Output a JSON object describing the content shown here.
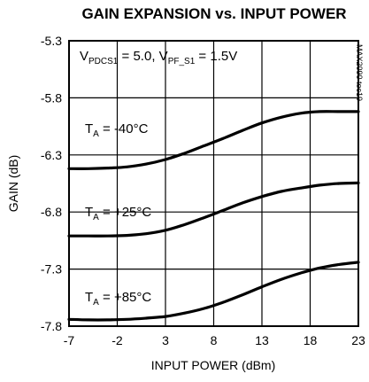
{
  "chart_data": {
    "type": "line",
    "title": "GAIN EXPANSION vs. INPUT POWER",
    "xlabel": "INPUT POWER (dBm)",
    "ylabel": "GAIN (dB)",
    "xlim": [
      -7,
      23
    ],
    "ylim": [
      -7.8,
      -5.3
    ],
    "xticks": [
      "-7",
      "-2",
      "3",
      "8",
      "13",
      "18",
      "23"
    ],
    "yticks": [
      "-5.3",
      "-5.8",
      "-6.3",
      "-6.8",
      "-7.3",
      "-7.8"
    ],
    "grid": true,
    "condition": {
      "v1": "V",
      "v1_sub": "PDCS1",
      "v1_val": " = 5.0, ",
      "v2": "V",
      "v2_sub": "PF_S1",
      "v2_val": " = 1.5V"
    },
    "side_label": "MAX2090 toc19",
    "series": [
      {
        "label_main": "T",
        "label_sub": "A",
        "label_val": " = -40°C",
        "x": [
          -7,
          -5,
          -3,
          -1,
          1,
          3,
          5,
          7,
          9,
          11,
          13,
          15,
          17,
          19,
          21,
          23
        ],
        "y": [
          -6.42,
          -6.42,
          -6.415,
          -6.405,
          -6.38,
          -6.34,
          -6.285,
          -6.22,
          -6.155,
          -6.085,
          -6.02,
          -5.97,
          -5.935,
          -5.92,
          -5.92,
          -5.92
        ]
      },
      {
        "label_main": "T",
        "label_sub": "A",
        "label_val": " = +25°C",
        "x": [
          -7,
          -5,
          -3,
          -1,
          1,
          3,
          5,
          7,
          9,
          11,
          13,
          15,
          17,
          19,
          21,
          23
        ],
        "y": [
          -7.01,
          -7.01,
          -7.01,
          -7.005,
          -6.99,
          -6.96,
          -6.91,
          -6.85,
          -6.785,
          -6.72,
          -6.665,
          -6.62,
          -6.59,
          -6.565,
          -6.55,
          -6.545
        ]
      },
      {
        "label_main": "T",
        "label_sub": "A",
        "label_val": " = +85°C",
        "x": [
          -7,
          -5,
          -3,
          -1,
          1,
          3,
          5,
          7,
          9,
          11,
          13,
          15,
          17,
          19,
          21,
          23
        ],
        "y": [
          -7.74,
          -7.745,
          -7.745,
          -7.74,
          -7.73,
          -7.715,
          -7.685,
          -7.645,
          -7.59,
          -7.525,
          -7.455,
          -7.39,
          -7.335,
          -7.29,
          -7.26,
          -7.24
        ]
      }
    ]
  }
}
